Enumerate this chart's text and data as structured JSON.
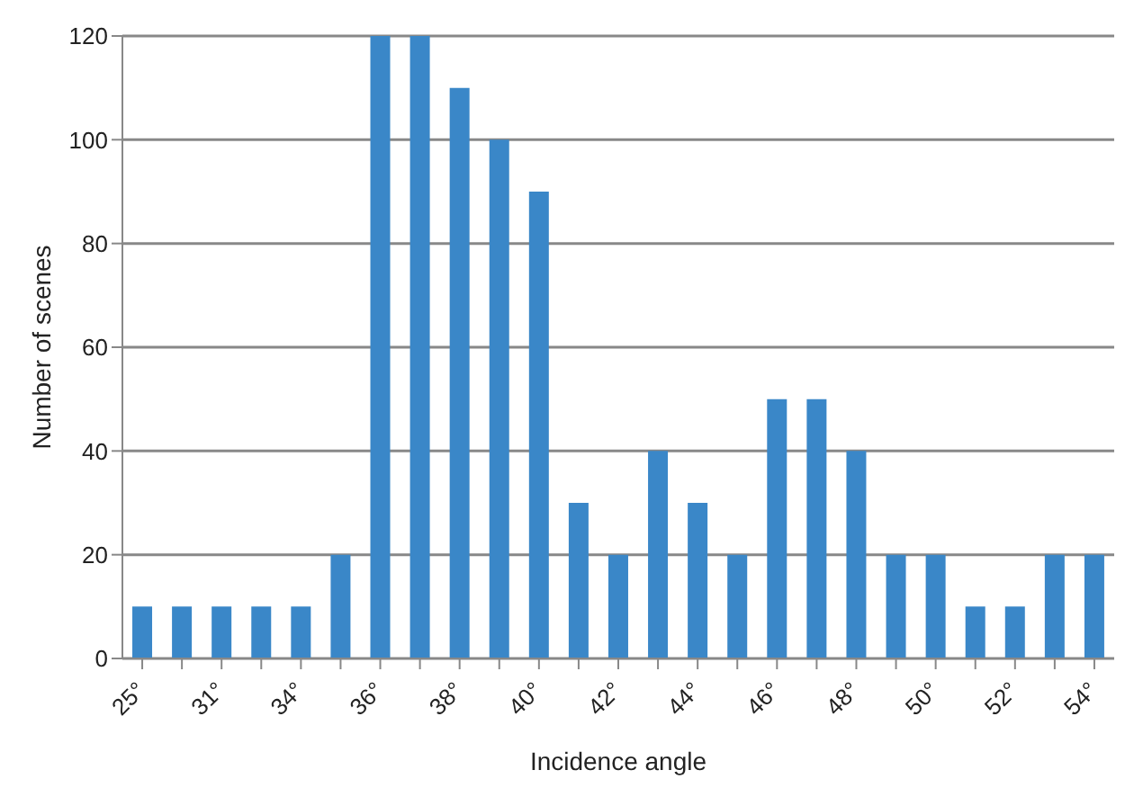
{
  "chart_data": {
    "type": "bar",
    "xlabel": "Incidence angle",
    "ylabel": "Number of scenes",
    "categories": [
      "25°",
      null,
      "31°",
      null,
      "34°",
      null,
      "36°",
      null,
      "38°",
      null,
      "40°",
      null,
      "42°",
      null,
      "44°",
      null,
      "46°",
      null,
      "48°",
      null,
      "50°",
      null,
      "52°",
      null,
      "54°"
    ],
    "values": [
      10,
      10,
      10,
      10,
      10,
      20,
      120,
      120,
      110,
      100,
      90,
      30,
      20,
      40,
      30,
      20,
      50,
      50,
      40,
      20,
      20,
      10,
      10,
      20,
      20
    ],
    "color": "#3a87c8",
    "ylim": [
      0,
      120
    ],
    "yticks": [
      0,
      20,
      40,
      60,
      80,
      100,
      120
    ],
    "grid": "y"
  }
}
